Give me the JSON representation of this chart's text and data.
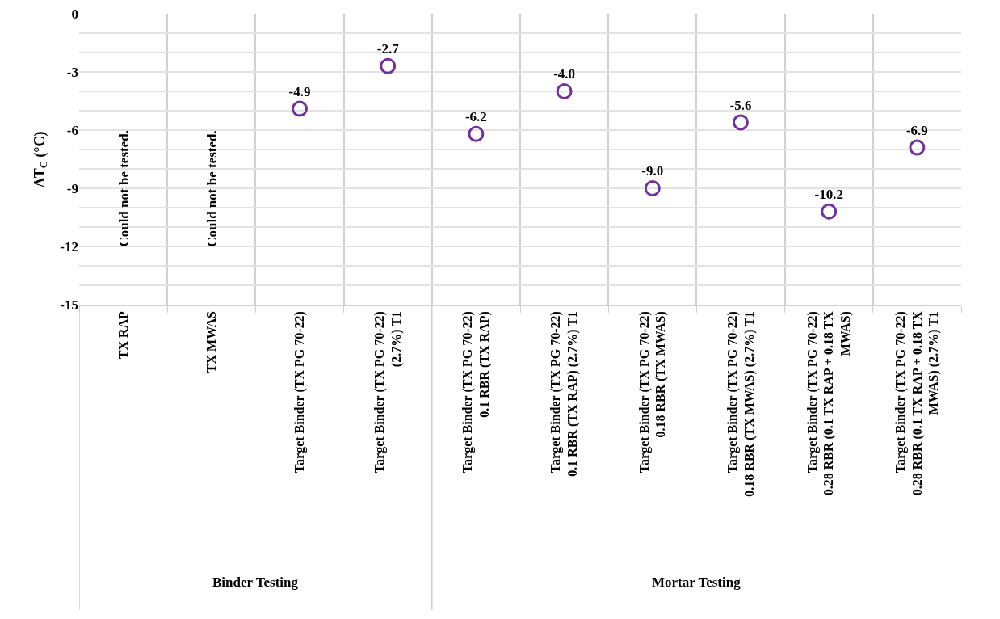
{
  "chart_data": {
    "type": "scatter",
    "ylabel": "ΔT$_{C}$ (°C)",
    "categories": [
      "TX RAP",
      "TX MWAS",
      "Target Binder (TX PG 70-22)",
      "Target Binder (TX PG 70-22) (2.7%) T1",
      "Target Binder (TX PG 70-22) 0.1 RBR (TX RAP)",
      "Target Binder (TX PG 70-22) 0.1 RBR (TX RAP) (2.7%) T1",
      "Target Binder (TX PG 70-22) 0.18 RBR (TX MWAS)",
      "Target Binder (TX PG 70-22) 0.18 RBR (TX MWAS) (2.7%) T1",
      "Target Binder (TX PG 70-22) 0.28 RBR (0.1 TX RAP + 0.18 TX MWAS)",
      "Target Binder (TX PG 70-22) 0.28 RBR (0.1 TX RAP + 0.18 TX MWAS) (2.7%) T1"
    ],
    "series": [
      {
        "color": "#7030a0",
        "values": [
          null,
          null,
          -4.9,
          -2.7,
          -6.2,
          -4.0,
          -9.0,
          -5.6,
          -10.2,
          -6.9
        ]
      }
    ],
    "value_labels": [
      null,
      null,
      "-4.9",
      "-2.7",
      "-6.2",
      "-4.0",
      "-9.0",
      "-5.6",
      "-10.2",
      "-6.9"
    ],
    "ylim": [
      -15,
      0
    ],
    "yticks": [
      0,
      {
        "value": -1,
        "label": null
      },
      {
        "value": -2,
        "label": null
      },
      -3,
      {
        "value": -4,
        "label": null
      },
      {
        "value": -5,
        "label": null
      },
      -6,
      {
        "value": -7,
        "label": null
      },
      {
        "value": -8,
        "label": null
      },
      -9,
      {
        "value": -10,
        "label": null
      },
      {
        "value": -11,
        "label": null
      },
      -12,
      {
        "value": -13,
        "label": null
      },
      {
        "value": -14,
        "label": null
      },
      -15
    ],
    "grid": true,
    "marker": "circle",
    "annotations": [
      "Could not be tested.",
      "Could not be tested.",
      "Binder Testing",
      "Mortar Testing"
    ]
  }
}
